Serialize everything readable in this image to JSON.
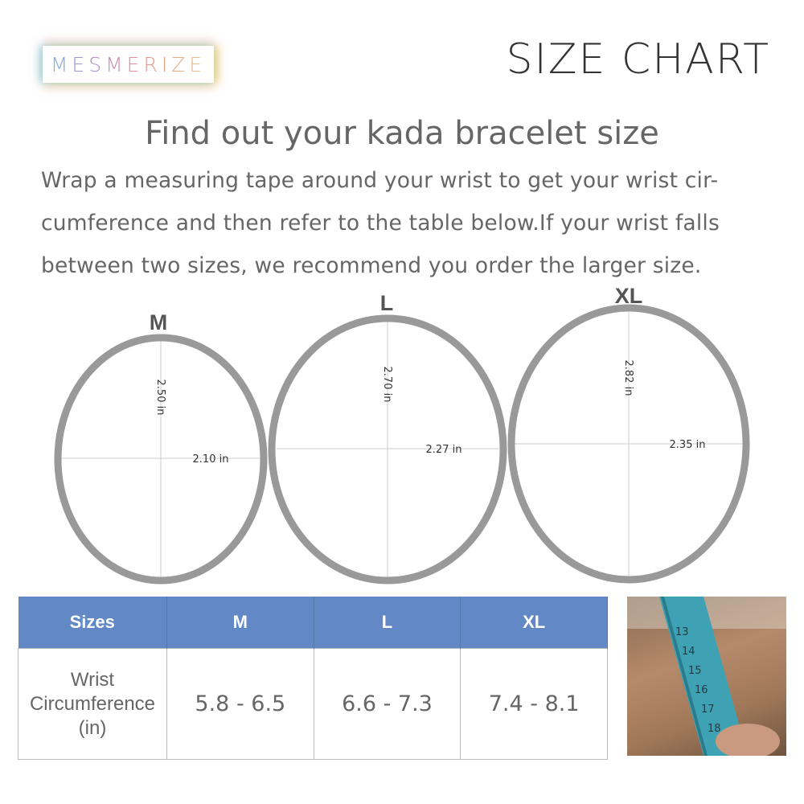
{
  "brand": {
    "logo_text": "MESMERIZE"
  },
  "title": "SIZE CHART",
  "heading": "Find out your kada bracelet size",
  "description": "Wrap a measuring tape around your wrist to get your wrist cir-cumference and then refer to the table below.If your wrist falls between two sizes, we recommend you order the larger size.",
  "bracelets": [
    {
      "size": "M",
      "height": "2.50 in",
      "width": "2.10 in"
    },
    {
      "size": "L",
      "height": "2.70 in",
      "width": "2.27 in"
    },
    {
      "size": "XL",
      "height": "2.82 in",
      "width": "2.35 in"
    }
  ],
  "table": {
    "headers": [
      "Sizes",
      "M",
      "L",
      "XL"
    ],
    "row_label": [
      "Wrist",
      "Circumference",
      "(in)"
    ],
    "values": [
      "5.8 - 6.5",
      "6.6 - 7.3",
      "7.4 - 8.1"
    ]
  },
  "photo": {
    "tape_numbers": [
      "13",
      "14",
      "15",
      "16",
      "17",
      "18"
    ]
  },
  "colors": {
    "header": "#6289c6",
    "band": "#999999"
  }
}
